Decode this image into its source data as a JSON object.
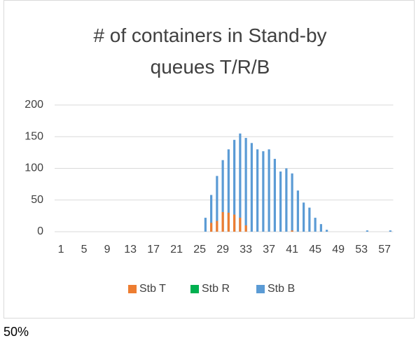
{
  "chart_data": {
    "type": "bar",
    "title": "# of containers in Stand-by queues T/R/B",
    "categories": [
      "1",
      null,
      null,
      null,
      "5",
      null,
      null,
      null,
      "9",
      null,
      null,
      null,
      "13",
      null,
      null,
      null,
      "17",
      null,
      null,
      null,
      "21",
      null,
      null,
      null,
      "25",
      null,
      null,
      null,
      "29",
      null,
      null,
      null,
      "33",
      null,
      null,
      null,
      "37",
      null,
      null,
      null,
      "41",
      null,
      null,
      null,
      "45",
      null,
      null,
      null,
      "49",
      null,
      null,
      null,
      "53",
      null,
      null,
      null,
      "57",
      null
    ],
    "series": [
      {
        "name": "Stb T",
        "color": "#ed7d31",
        "values": [
          0,
          0,
          0,
          0,
          0,
          0,
          0,
          0,
          0,
          0,
          0,
          0,
          0,
          0,
          0,
          0,
          0,
          0,
          0,
          0,
          0,
          0,
          0,
          0,
          0,
          0,
          14,
          17,
          31,
          30,
          27,
          22,
          10,
          0,
          0,
          0,
          0,
          0,
          0,
          0,
          2,
          0,
          0,
          0,
          0,
          0,
          0,
          0,
          0,
          0,
          0,
          0,
          0,
          0,
          0,
          0,
          0,
          0
        ]
      },
      {
        "name": "Stb R",
        "color": "#00b050",
        "values": [
          0,
          0,
          0,
          0,
          0,
          0,
          0,
          0,
          0,
          0,
          0,
          0,
          0,
          0,
          0,
          0,
          0,
          0,
          0,
          0,
          0,
          0,
          0,
          0,
          0,
          0,
          0,
          0,
          0,
          0,
          0,
          0,
          0,
          0,
          0,
          0,
          0,
          0,
          0,
          0,
          0,
          0,
          0,
          0,
          0,
          0,
          0,
          0,
          0,
          0,
          0,
          0,
          0,
          0,
          0,
          0,
          0,
          0
        ]
      },
      {
        "name": "Stb B",
        "color": "#5b9bd5",
        "values": [
          0,
          0,
          0,
          0,
          0,
          0,
          0,
          0,
          0,
          0,
          0,
          0,
          0,
          0,
          0,
          0,
          0,
          0,
          0,
          0,
          0,
          0,
          0,
          0,
          0,
          22,
          58,
          88,
          113,
          130,
          145,
          155,
          148,
          140,
          130,
          127,
          130,
          115,
          95,
          100,
          92,
          65,
          46,
          38,
          22,
          12,
          3,
          0,
          0,
          0,
          0,
          0,
          0,
          2,
          0,
          0,
          0,
          2
        ]
      }
    ],
    "ylim": [
      0,
      200
    ],
    "yticks": [
      0,
      50,
      100,
      150,
      200
    ],
    "grid": true,
    "legend": "bottom"
  },
  "footer": "50%"
}
